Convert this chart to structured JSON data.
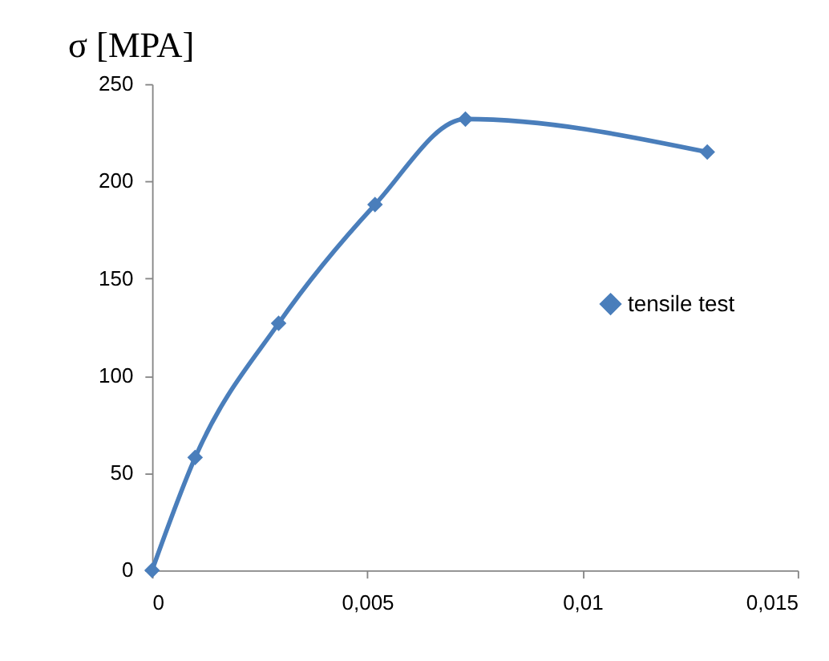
{
  "chart_data": {
    "type": "line",
    "ylabel": "σ [MPA]",
    "x": [
      0,
      0.001,
      0.00294,
      0.00518,
      0.00728,
      0.0129
    ],
    "series": [
      {
        "name": "tensile test",
        "color": "#4a7ebb",
        "values": [
          0,
          58,
          127,
          188,
          232,
          215
        ]
      }
    ],
    "xlim": [
      0,
      0.015
    ],
    "xticks": [
      0,
      {
        "value": 0.005,
        "label": "0,005"
      },
      {
        "value": 0.01,
        "label": "0,01"
      },
      {
        "value": 0.015,
        "label": "0,015"
      }
    ],
    "ylim": [
      0,
      250
    ],
    "yticks": [
      0,
      50,
      100,
      150,
      200,
      250
    ],
    "grid": false,
    "legend": "right",
    "marker": "diamond",
    "line_style": "solid"
  }
}
